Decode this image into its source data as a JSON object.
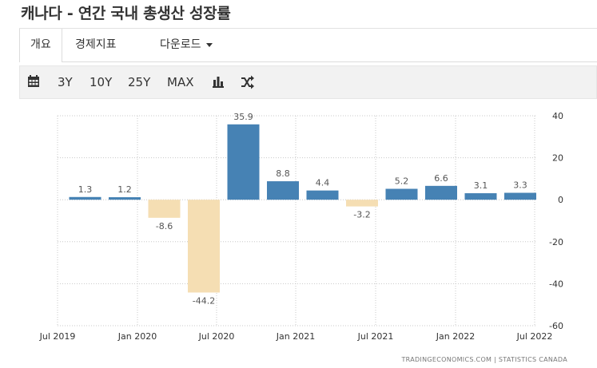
{
  "page": {
    "title": "캐나다 - 연간 국내 총생산 성장률"
  },
  "tabs": [
    {
      "label": "개요"
    },
    {
      "label": "경제지표"
    },
    {
      "label": "다운로드"
    }
  ],
  "toolbar": {
    "icons": [
      "calendar-icon",
      "bar-chart-icon",
      "shuffle-icon"
    ],
    "ranges": [
      "3Y",
      "10Y",
      "25Y",
      "MAX"
    ]
  },
  "chart_data": {
    "type": "bar",
    "categories": [
      "Q3 2019",
      "Q4 2019",
      "Q1 2020",
      "Q2 2020",
      "Q3 2020",
      "Q4 2020",
      "Q1 2021",
      "Q2 2021",
      "Q3 2021",
      "Q4 2021",
      "Q1 2022",
      "Q2 2022"
    ],
    "values": [
      1.3,
      1.2,
      -8.6,
      -44.2,
      35.9,
      8.8,
      4.4,
      -3.2,
      5.2,
      6.6,
      3.1,
      3.3
    ],
    "data_labels": [
      "1.3",
      "1.2",
      "-8.6",
      "-44.2",
      "35.9",
      "8.8",
      "4.4",
      "-3.2",
      "5.2",
      "6.6",
      "3.1",
      "3.3"
    ],
    "x_tick_labels": [
      "Jul 2019",
      "Jan 2020",
      "Jul 2020",
      "Jan 2021",
      "Jul 2021",
      "Jan 2022",
      "Jul 2022"
    ],
    "y_ticks": [
      40,
      20,
      0,
      -20,
      -40,
      -60
    ],
    "ylim": [
      -60,
      40
    ],
    "grid": "dotted",
    "colors": {
      "positive": "#4682b4",
      "negative": "#f5deb3",
      "grid": "#c8c8c8",
      "label": "#555555"
    },
    "title": "",
    "xlabel": "",
    "ylabel": ""
  },
  "credits": "TRADINGECONOMICS.COM  |  STATISTICS CANADA"
}
